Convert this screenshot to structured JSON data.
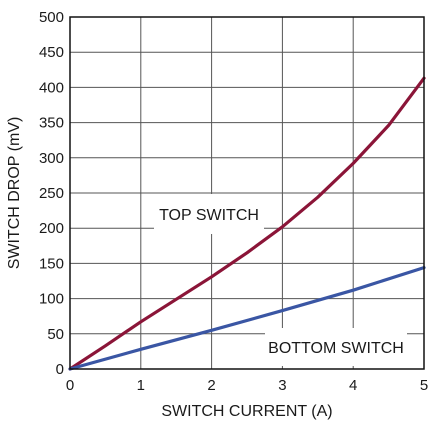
{
  "chart_data": {
    "type": "line",
    "title": "",
    "xlabel": "SWITCH CURRENT (A)",
    "ylabel": "SWITCH DROP (mV)",
    "xlim": [
      0,
      5
    ],
    "ylim": [
      0,
      500
    ],
    "x_ticks": [
      "0",
      "1",
      "2",
      "3",
      "4",
      "5"
    ],
    "y_ticks": [
      "0",
      "50",
      "100",
      "150",
      "200",
      "250",
      "300",
      "350",
      "400",
      "450",
      "500"
    ],
    "grid": true,
    "series": [
      {
        "name": "TOP SWITCH",
        "color": "#8b1538",
        "x": [
          0,
          0.5,
          1,
          1.5,
          2,
          2.5,
          3,
          3.5,
          4,
          4.5,
          5
        ],
        "y": [
          0,
          33,
          67,
          99,
          131,
          165,
          202,
          244,
          292,
          346,
          413
        ]
      },
      {
        "name": "BOTTOM SWITCH",
        "color": "#3a56a4",
        "x": [
          0,
          1,
          2,
          3,
          4,
          5
        ],
        "y": [
          0,
          28,
          55,
          83,
          112,
          144
        ]
      }
    ]
  }
}
